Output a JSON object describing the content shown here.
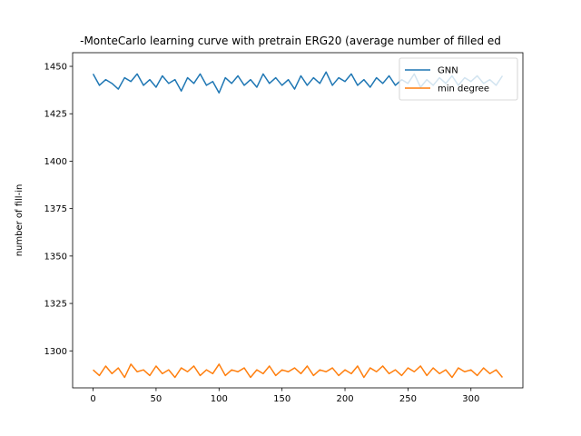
{
  "chart_data": {
    "type": "line",
    "title": "-MonteCarlo learning curve with pretrain ERG20 (average number of filled ed",
    "xlabel": "",
    "ylabel": "number of fill-in",
    "xlim": [
      -16.25,
      341.25
    ],
    "ylim": [
      1280.5,
      1457.2
    ],
    "xticks": [
      0,
      50,
      100,
      150,
      200,
      250,
      300
    ],
    "yticks": [
      1300,
      1325,
      1350,
      1375,
      1400,
      1425,
      1450
    ],
    "grid": false,
    "legend_position": "top-right",
    "series": [
      {
        "name": "GNN",
        "color": "#1f77b4",
        "x_start": 0,
        "x_step": 5,
        "values": [
          1446,
          1440,
          1443,
          1441,
          1438,
          1444,
          1442,
          1446,
          1440,
          1443,
          1439,
          1445,
          1441,
          1443,
          1437,
          1444,
          1441,
          1446,
          1440,
          1442,
          1436,
          1444,
          1441,
          1445,
          1440,
          1443,
          1439,
          1446,
          1441,
          1444,
          1440,
          1443,
          1438,
          1445,
          1440,
          1444,
          1441,
          1447,
          1440,
          1444,
          1442,
          1446,
          1440,
          1443,
          1439,
          1444,
          1441,
          1445,
          1440,
          1443,
          1441,
          1446,
          1439,
          1443,
          1440,
          1444,
          1441,
          1445,
          1440,
          1444,
          1442,
          1445,
          1441,
          1443,
          1440,
          1445
        ]
      },
      {
        "name": "min degree",
        "color": "#ff7f0e",
        "x_start": 0,
        "x_step": 5,
        "values": [
          1290,
          1287,
          1292,
          1288,
          1291,
          1286,
          1293,
          1289,
          1290,
          1287,
          1292,
          1288,
          1290,
          1286,
          1291,
          1289,
          1292,
          1287,
          1290,
          1288,
          1293,
          1287,
          1290,
          1289,
          1291,
          1286,
          1290,
          1288,
          1292,
          1287,
          1290,
          1289,
          1291,
          1288,
          1292,
          1287,
          1290,
          1289,
          1291,
          1287,
          1290,
          1288,
          1292,
          1286,
          1291,
          1289,
          1292,
          1288,
          1290,
          1287,
          1291,
          1289,
          1292,
          1287,
          1291,
          1288,
          1290,
          1286,
          1291,
          1289,
          1290,
          1287,
          1291,
          1288,
          1290,
          1286
        ]
      }
    ]
  }
}
